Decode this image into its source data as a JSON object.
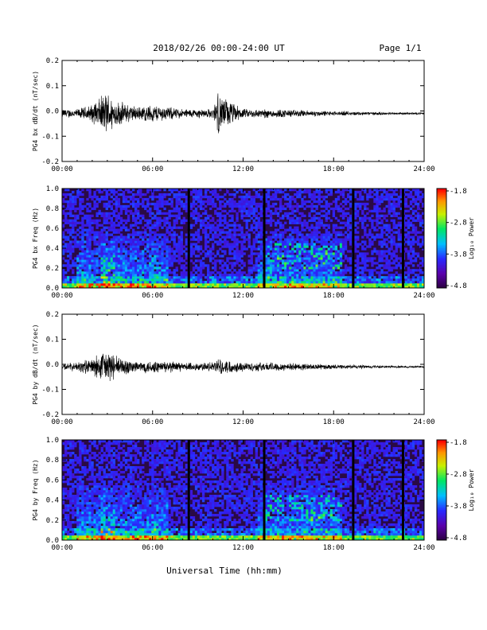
{
  "header": {
    "title": "2018/02/26  00:00-24:00 UT",
    "page": "Page 1/1"
  },
  "xlabel": "Universal Time (hh:mm)",
  "colorbar": {
    "label": "Log₁₀ Power",
    "ticks": [
      "-1.8",
      "-2.8",
      "-3.8",
      "-4.8"
    ]
  },
  "colors": {
    "trace": "#000000",
    "background": "#2a0a45"
  },
  "chart_data": [
    {
      "type": "line",
      "ylabel": "PG4 bx dB/dt (nT/sec)",
      "ylim": [
        -0.2,
        0.2
      ],
      "yticks": [
        "0.2",
        "0.1",
        "0.0",
        "-0.1",
        "-0.2"
      ],
      "xlim": [
        0,
        24
      ],
      "xticks": [
        "00:00",
        "06:00",
        "12:00",
        "18:00",
        "24:00"
      ],
      "series": [
        {
          "x": [
            0,
            1,
            2,
            3,
            3.5,
            5,
            6,
            8,
            10,
            10.3,
            12,
            14,
            16,
            18,
            20,
            22,
            24
          ],
          "y_envelope": [
            0.02,
            0.02,
            0.04,
            0.1,
            0.06,
            0.03,
            0.04,
            0.02,
            0.02,
            0.09,
            0.02,
            0.02,
            0.015,
            0.01,
            0.008,
            0.005,
            0.004
          ]
        }
      ]
    },
    {
      "type": "heatmap",
      "ylabel": "PG4 bx Freq (Hz)",
      "ylim": [
        0.0,
        1.0
      ],
      "yticks": [
        "1.0",
        "0.8",
        "0.6",
        "0.4",
        "0.2",
        "0.0"
      ],
      "xlim": [
        0,
        24
      ],
      "xticks": [
        "00:00",
        "06:00",
        "12:00",
        "18:00",
        "24:00"
      ],
      "color_range": [
        -4.8,
        -1.8
      ],
      "data_gaps": [
        8.4,
        13.4,
        19.3,
        22.6
      ]
    },
    {
      "type": "line",
      "ylabel": "PG4 by dB/dt (nT/sec)",
      "ylim": [
        -0.2,
        0.2
      ],
      "yticks": [
        "0.2",
        "0.1",
        "0.0",
        "-0.1",
        "-0.2"
      ],
      "xlim": [
        0,
        24
      ],
      "xticks": [
        "00:00",
        "06:00",
        "12:00",
        "18:00",
        "24:00"
      ],
      "series": [
        {
          "x": [
            0,
            1,
            2,
            3,
            3.5,
            5,
            6,
            8,
            10,
            10.3,
            12,
            14,
            16,
            18,
            20,
            22,
            24
          ],
          "y_envelope": [
            0.015,
            0.02,
            0.04,
            0.08,
            0.05,
            0.025,
            0.03,
            0.02,
            0.02,
            0.035,
            0.02,
            0.02,
            0.015,
            0.01,
            0.008,
            0.005,
            0.004
          ]
        }
      ]
    },
    {
      "type": "heatmap",
      "ylabel": "PG4 by Freq (Hz)",
      "ylim": [
        0.0,
        1.0
      ],
      "yticks": [
        "1.0",
        "0.8",
        "0.6",
        "0.4",
        "0.2",
        "0.0"
      ],
      "xlim": [
        0,
        24
      ],
      "xticks": [
        "00:00",
        "06:00",
        "12:00",
        "18:00",
        "24:00"
      ],
      "color_range": [
        -4.8,
        -1.8
      ],
      "data_gaps": [
        8.4,
        13.4,
        19.3,
        22.6
      ]
    }
  ]
}
